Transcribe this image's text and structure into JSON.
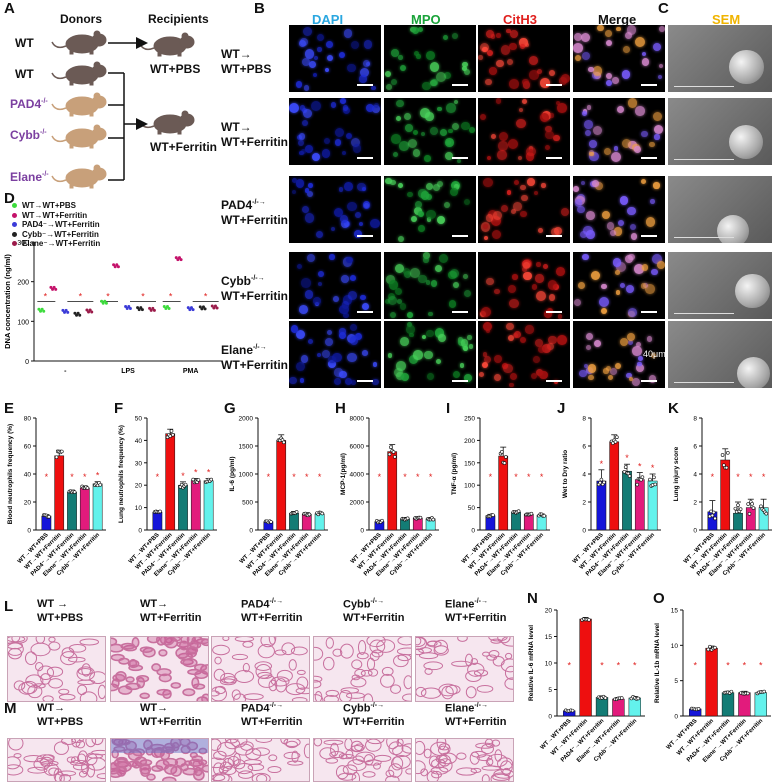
{
  "panels": {
    "A": "A",
    "B": "B",
    "C": "C",
    "D": "D",
    "E": "E",
    "F": "F",
    "G": "G",
    "H": "H",
    "I": "I",
    "J": "J",
    "K": "K",
    "L": "L",
    "M": "M",
    "N": "N",
    "O": "O"
  },
  "panelA": {
    "donors_label": "Donors",
    "recipients_label": "Recipients",
    "donor_wt_1": "WT",
    "donor_wt_2": "WT",
    "donor_pad4": "PAD4",
    "donor_cybb": "Cybb",
    "donor_elane": "Elane",
    "ko_sup": "-/-",
    "recipient_pbs": "WT+PBS",
    "recipient_ferritin": "WT+Ferritin",
    "colors": {
      "wt_mouse": "#6b5a55",
      "ko_mouse": "#c8a07a",
      "ko_text": "#7b3fa0"
    }
  },
  "panelB": {
    "channels": [
      {
        "label": "DAPI",
        "color": "#2aa7e0"
      },
      {
        "label": "MPO",
        "color": "#1aa33a"
      },
      {
        "label": "CitH3",
        "color": "#e0201e"
      },
      {
        "label": "Merge",
        "color": "#111111"
      }
    ],
    "rows": [
      {
        "line1": "WT→",
        "line2": "WT+PBS",
        "sup": ""
      },
      {
        "line1": "WT→",
        "line2": "WT+Ferritin",
        "sup": ""
      },
      {
        "line1": "PAD4",
        "line2": "WT+Ferritin",
        "sup": "-/-→"
      },
      {
        "line1": "Cybb",
        "line2": "WT+Ferritin",
        "sup": "-/-→"
      },
      {
        "line1": "Elane",
        "line2": "WT+Ferritin",
        "sup": "-/-→"
      }
    ],
    "scale_label": "40μm"
  },
  "panelC": {
    "label": "SEM",
    "color": "#f0b400"
  },
  "panelD": {
    "legend": [
      {
        "label": "WT→WT+PBS",
        "color": "#3ddc3d"
      },
      {
        "label": "WT→WT+Ferritin",
        "color": "#c4126a"
      },
      {
        "label": "PAD4⁻→WT+Ferritin",
        "color": "#3b3bd8"
      },
      {
        "label": "Cybb⁻→WT+Ferritin",
        "color": "#222222"
      },
      {
        "label": "Elane⁻→WT+Ferritin",
        "color": "#9b1b4a"
      }
    ],
    "ylabel": "DNA concentration (ng/ml)"
  },
  "chart_data": [
    {
      "type": "scatter",
      "panel": "D",
      "ylabel": "DNA concentration (ng/ml)",
      "ylim": [
        0,
        300
      ],
      "yticks": [
        0,
        100,
        200,
        300
      ],
      "categories": [
        "-",
        "LPS",
        "PMA"
      ],
      "series": [
        {
          "name": "WT→WT+PBS",
          "values": [
            128,
            148,
            135
          ]
        },
        {
          "name": "WT→WT+Ferritin",
          "values": [
            183,
            240,
            258
          ]
        },
        {
          "name": "PAD4⁻→WT+Ferritin",
          "values": [
            125,
            135,
            132
          ]
        },
        {
          "name": "Cybb⁻→WT+Ferritin",
          "values": [
            118,
            132,
            134
          ]
        },
        {
          "name": "Elane⁻→WT+Ferritin",
          "values": [
            126,
            130,
            136
          ]
        }
      ]
    },
    {
      "type": "bar",
      "panel": "E",
      "ylabel": "Blood neutrophils frequency (%)",
      "ylim": [
        0,
        80
      ],
      "yticks": [
        0,
        20,
        40,
        60,
        80
      ],
      "categories": [
        "WT→WT+PBS",
        "WT→WT+Ferritin",
        "PAD4⁻→WT+Ferritin",
        "Elane⁻→WT+Ferritin",
        "Cybb⁻→WT+Ferritin"
      ],
      "values": [
        10,
        53,
        27,
        30,
        33
      ],
      "errors": [
        1,
        4,
        1.5,
        1.5,
        1.5
      ]
    },
    {
      "type": "bar",
      "panel": "F",
      "ylabel": "Lung neutrophils frequency (%)",
      "ylim": [
        0,
        50
      ],
      "yticks": [
        0,
        10,
        20,
        30,
        40,
        50
      ],
      "categories": [
        "WT→WT+PBS",
        "WT→WT+Ferritin",
        "PAD4⁻→WT+Ferritin",
        "Elane⁻→WT+Ferritin",
        "Cybb⁻→WT+Ferritin"
      ],
      "values": [
        8,
        43,
        20,
        22,
        22
      ],
      "errors": [
        0.5,
        2,
        1.5,
        1,
        1
      ]
    },
    {
      "type": "bar",
      "panel": "G",
      "ylabel": "IL-6 (pg/ml)",
      "ylim": [
        0,
        2000
      ],
      "yticks": [
        0,
        500,
        1000,
        1500,
        2000
      ],
      "categories": [
        "WT→WT+PBS",
        "WT→WT+Ferritin",
        "PAD4⁻→WT+Ferritin",
        "Elane⁻→WT+Ferritin",
        "Cybb⁻→WT+Ferritin"
      ],
      "values": [
        150,
        1600,
        300,
        280,
        290
      ],
      "errors": [
        20,
        100,
        30,
        30,
        30
      ]
    },
    {
      "type": "bar",
      "panel": "H",
      "ylabel": "MCP-1(pg/ml)",
      "ylim": [
        0,
        8000
      ],
      "yticks": [
        0,
        2000,
        4000,
        6000,
        8000
      ],
      "categories": [
        "WT→WT+PBS",
        "WT→WT+Ferritin",
        "PAD4⁻→WT+Ferritin",
        "Elane⁻→WT+Ferritin",
        "Cybb⁻→WT+Ferritin"
      ],
      "values": [
        600,
        5600,
        800,
        850,
        800
      ],
      "errors": [
        100,
        500,
        100,
        100,
        100
      ]
    },
    {
      "type": "bar",
      "panel": "I",
      "ylabel": "TNF-α (pg/ml)",
      "ylim": [
        0,
        250
      ],
      "yticks": [
        0,
        50,
        100,
        150,
        200,
        250
      ],
      "categories": [
        "WT→WT+PBS",
        "WT→WT+Ferritin",
        "PAD4⁻→WT+Ferritin",
        "Elane⁻→WT+Ferritin",
        "Cybb⁻→WT+Ferritin"
      ],
      "values": [
        32,
        165,
        40,
        35,
        33
      ],
      "errors": [
        3,
        20,
        3,
        3,
        3
      ]
    },
    {
      "type": "bar",
      "panel": "J",
      "ylabel": "Wet to Dry ratio",
      "ylim": [
        0,
        8
      ],
      "yticks": [
        0,
        2,
        4,
        6,
        8
      ],
      "categories": [
        "WT→WT+PBS",
        "WT→WT+Ferritin",
        "PAD4⁻→WT+Ferritin",
        "Elane⁻→WT+Ferritin",
        "Cybb⁻→WT+Ferritin"
      ],
      "values": [
        3.5,
        6.3,
        4.2,
        3.6,
        3.5
      ],
      "errors": [
        0.8,
        0.5,
        0.5,
        0.5,
        0.5
      ]
    },
    {
      "type": "bar",
      "panel": "K",
      "ylabel": "Lung injury score",
      "ylim": [
        0,
        8
      ],
      "yticks": [
        0,
        2,
        4,
        6,
        8
      ],
      "categories": [
        "WT→WT+PBS",
        "WT→WT+Ferritin",
        "PAD4⁻→WT+Ferritin",
        "Elane⁻→WT+Ferritin",
        "Cybb⁻→WT+Ferritin"
      ],
      "values": [
        1.3,
        5.0,
        1.2,
        1.6,
        1.6
      ],
      "errors": [
        0.8,
        0.8,
        0.8,
        0.6,
        0.6
      ]
    },
    {
      "type": "bar",
      "panel": "N",
      "ylabel": "Relative IL-6 mRNA level",
      "ylim": [
        0,
        20
      ],
      "yticks": [
        0,
        5,
        10,
        15,
        20
      ],
      "categories": [
        "WT→WT+PBS",
        "WT→WT+Ferritin",
        "PAD4⁻→WT+Ferritin",
        "Elane⁻→WT+Ferritin",
        "Cybb⁻→WT+Ferritin"
      ],
      "values": [
        1,
        18.3,
        3.5,
        3.2,
        3.4
      ],
      "errors": [
        0.1,
        0.3,
        0.3,
        0.3,
        0.3
      ]
    },
    {
      "type": "bar",
      "panel": "O",
      "ylabel": "Relative IL-1b mRNA level",
      "ylim": [
        0,
        15
      ],
      "yticks": [
        0,
        5,
        10,
        15
      ],
      "categories": [
        "WT→WT+PBS",
        "WT→WT+Ferritin",
        "PAD4⁻→WT+Ferritin",
        "Elane⁻→WT+Ferritin",
        "Cybb⁻→WT+Ferritin"
      ],
      "values": [
        1,
        9.6,
        3.3,
        3.3,
        3.3
      ],
      "errors": [
        0.1,
        0.3,
        0.2,
        0.2,
        0.2
      ]
    }
  ],
  "bar_colors": [
    "#1515d9",
    "#ee0f0f",
    "#137c75",
    "#e21b7c",
    "#63f2ec"
  ],
  "star": "*",
  "panelL": {
    "labels": [
      {
        "line1": "WT →",
        "line2": "WT+PBS",
        "sup": ""
      },
      {
        "line1": "WT→",
        "line2": "WT+Ferritin",
        "sup": ""
      },
      {
        "line1": "PAD4",
        "line2": "WT+Ferritin",
        "sup": "-/-→"
      },
      {
        "line1": "Cybb",
        "line2": "WT+Ferritin",
        "sup": "-/-→"
      },
      {
        "line1": "Elane",
        "line2": "WT+Ferritin",
        "sup": "-/-→"
      }
    ]
  },
  "panelM": {
    "labels": [
      {
        "line1": "WT→",
        "line2": "WT+PBS",
        "sup": ""
      },
      {
        "line1": "WT→",
        "line2": "WT+Ferritin",
        "sup": ""
      },
      {
        "line1": "PAD4",
        "line2": "WT+Ferritin",
        "sup": "-/-→"
      },
      {
        "line1": "Cybb",
        "line2": "WT+Ferritin",
        "sup": "-/-→"
      },
      {
        "line1": "Elane",
        "line2": "WT+Ferritin",
        "sup": "-/-→"
      }
    ]
  }
}
